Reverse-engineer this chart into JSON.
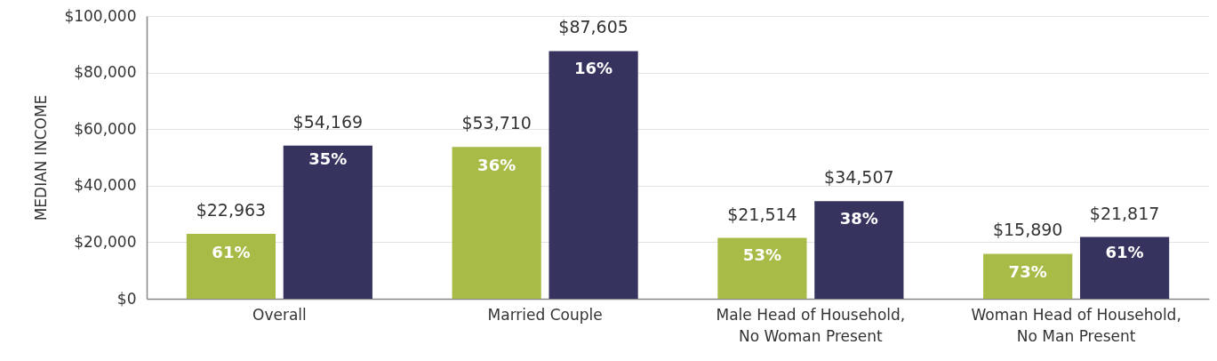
{
  "chart_data": {
    "type": "bar",
    "ylabel": "MEDIAN INCOME",
    "categories": [
      "Overall",
      "Married Couple",
      "Male Head of Household,\nNo Woman Present",
      "Woman Head of Household,\nNo Man Present"
    ],
    "series": [
      {
        "color": "#a9bb47",
        "values": [
          22963,
          53710,
          21514,
          15890
        ],
        "value_labels": [
          "$22,963",
          "$53,710",
          "$21,514",
          "$15,890"
        ]
      },
      {
        "color": "#36345f",
        "values": [
          54169,
          87605,
          34507,
          21817
        ],
        "value_labels": [
          "$54,169",
          "$87,605",
          "$34,507",
          "$21,817"
        ]
      }
    ],
    "ylim": [
      0,
      100000
    ],
    "yticks": [
      {
        "value": 0,
        "label": "$0"
      },
      {
        "value": 20000,
        "label": "$20,000"
      },
      {
        "value": 40000,
        "label": "$40,000"
      },
      {
        "value": 60000,
        "label": "$60,000"
      },
      {
        "value": 80000,
        "label": "$80,000"
      },
      {
        "value": 100000,
        "label": "$100,000"
      }
    ],
    "grid": "y",
    "annotations": [
      {
        "text": "61%",
        "x": "Overall",
        "y": 16000
      },
      {
        "text": "35%",
        "x": "Overall",
        "y": 49000
      },
      {
        "text": "36%",
        "x": "Married Couple",
        "y": 47000
      },
      {
        "text": "16%",
        "x": "Married Couple",
        "y": 81000
      },
      {
        "text": "53%",
        "x": "Male Head of Household,\nNo Woman Present",
        "y": 15000
      },
      {
        "text": "38%",
        "x": "Male Head of Household,\nNo Woman Present",
        "y": 28000
      },
      {
        "text": "73%",
        "x": "Woman Head of Household,\nNo Man Present",
        "y": 9000
      },
      {
        "text": "61%",
        "x": "Woman Head of Household,\nNo Man Present",
        "y": 16000
      }
    ]
  }
}
